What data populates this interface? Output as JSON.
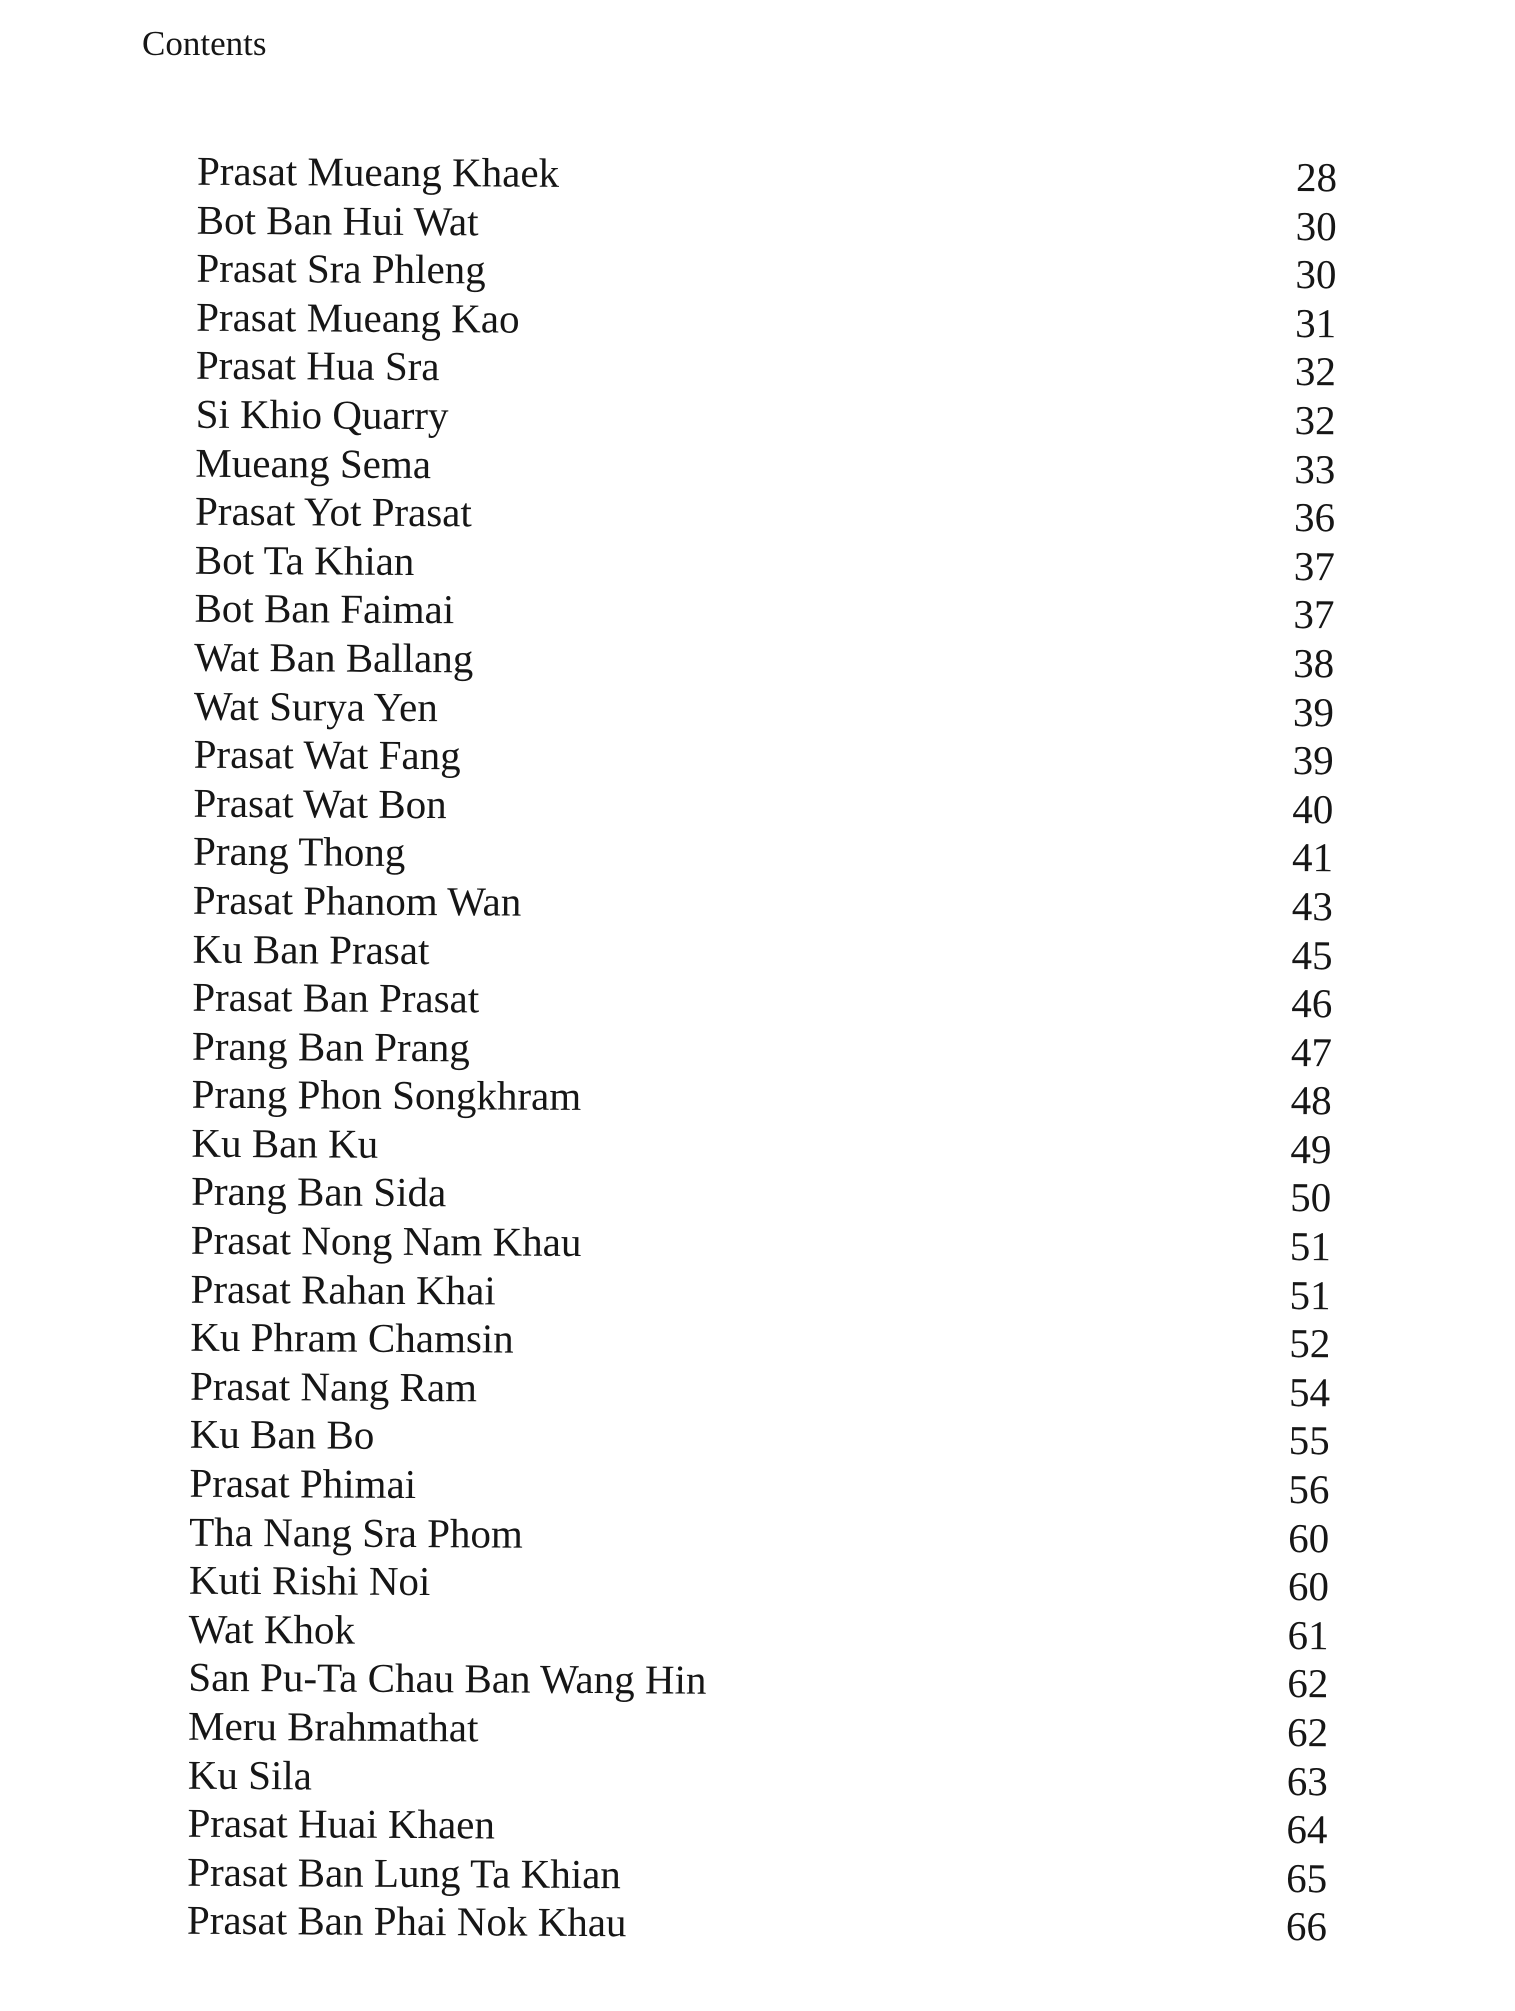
{
  "header": {
    "title": "Contents"
  },
  "entries": [
    {
      "title": "Prasat Mueang Khaek",
      "page": "28"
    },
    {
      "title": "Bot Ban Hui Wat",
      "page": "30"
    },
    {
      "title": "Prasat Sra Phleng",
      "page": "30"
    },
    {
      "title": "Prasat Mueang Kao",
      "page": "31"
    },
    {
      "title": "Prasat Hua Sra",
      "page": "32"
    },
    {
      "title": "Si Khio Quarry",
      "page": "32"
    },
    {
      "title": "Mueang Sema",
      "page": "33"
    },
    {
      "title": "Prasat Yot Prasat",
      "page": "36"
    },
    {
      "title": "Bot Ta Khian",
      "page": "37"
    },
    {
      "title": "Bot Ban Faimai",
      "page": "37"
    },
    {
      "title": "Wat Ban Ballang",
      "page": "38"
    },
    {
      "title": "Wat Surya Yen",
      "page": "39"
    },
    {
      "title": "Prasat Wat Fang",
      "page": "39"
    },
    {
      "title": "Prasat Wat Bon",
      "page": "40"
    },
    {
      "title": "Prang Thong",
      "page": "41"
    },
    {
      "title": "Prasat Phanom Wan",
      "page": "43"
    },
    {
      "title": "Ku Ban Prasat",
      "page": "45"
    },
    {
      "title": "Prasat Ban Prasat",
      "page": "46"
    },
    {
      "title": "Prang Ban Prang",
      "page": "47"
    },
    {
      "title": "Prang Phon Songkhram",
      "page": "48"
    },
    {
      "title": "Ku Ban Ku",
      "page": "49"
    },
    {
      "title": "Prang Ban Sida",
      "page": "50"
    },
    {
      "title": "Prasat Nong Nam Khau",
      "page": "51"
    },
    {
      "title": "Prasat Rahan Khai",
      "page": "51"
    },
    {
      "title": "Ku Phram Chamsin",
      "page": "52"
    },
    {
      "title": "Prasat Nang Ram",
      "page": "54"
    },
    {
      "title": "Ku Ban Bo",
      "page": "55"
    },
    {
      "title": "Prasat Phimai",
      "page": "56"
    },
    {
      "title": "Tha Nang Sra Phom",
      "page": "60"
    },
    {
      "title": "Kuti Rishi Noi",
      "page": "60"
    },
    {
      "title": "Wat Khok",
      "page": "61"
    },
    {
      "title": "San Pu-Ta Chau Ban Wang Hin",
      "page": "62"
    },
    {
      "title": "Meru Brahmathat",
      "page": "62"
    },
    {
      "title": "Ku Sila",
      "page": "63"
    },
    {
      "title": "Prasat Huai Khaen",
      "page": "64"
    },
    {
      "title": "Prasat Ban Lung Ta Khian",
      "page": "65"
    },
    {
      "title": "Prasat Ban Phai Nok Khau",
      "page": "66"
    }
  ]
}
